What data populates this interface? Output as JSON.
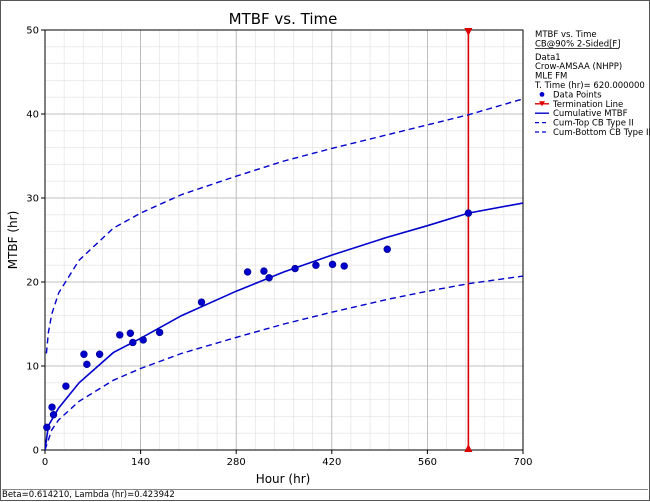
{
  "chart_data": {
    "type": "scatter",
    "title": "MTBF vs. Time",
    "xlabel": "Hour (hr)",
    "ylabel": "MTBF (hr)",
    "xlim": [
      0,
      700
    ],
    "ylim": [
      0,
      50
    ],
    "x_ticks": [
      0,
      140,
      280,
      420,
      560,
      700
    ],
    "x_tick_labels": [
      "0",
      "140",
      "280",
      "420",
      "560",
      "700"
    ],
    "y_ticks": [
      0,
      10,
      20,
      30,
      40,
      50
    ],
    "y_tick_labels": [
      "0",
      "10",
      "20",
      "30",
      "40",
      "50"
    ],
    "grid": true,
    "legend_position": "right",
    "legend": {
      "header": [
        "MTBF vs. Time",
        "CB@90% 2-Sided[F]",
        "Data1",
        "Crow-AMSAA (NHPP)",
        "MLE FM",
        "T. Time (hr)= 620.000000"
      ],
      "entries": [
        {
          "label": "Data Points",
          "symbol": "dot"
        },
        {
          "label": "Termination Line",
          "symbol": "red-line"
        },
        {
          "label": "Cumulative MTBF",
          "symbol": "solid"
        },
        {
          "label": "Cum-Top CB Type II",
          "symbol": "dashed"
        },
        {
          "label": "Cum-Bottom CB Type II",
          "symbol": "dashed"
        }
      ]
    },
    "series": [
      {
        "name": "Data Points",
        "type": "scatter",
        "x": [
          2.7,
          10.3,
          12.5,
          30.6,
          57.0,
          61.3,
          80.0,
          109.5,
          125.0,
          128.6,
          143.8,
          167.9,
          229.2,
          296.7,
          320.6,
          328.2,
          366.2,
          396.7,
          421.1,
          438.2,
          501.2,
          620.0
        ],
        "y": [
          2.7,
          5.1,
          4.2,
          7.6,
          11.4,
          10.2,
          11.4,
          13.7,
          13.9,
          12.8,
          13.1,
          14.0,
          17.6,
          21.2,
          21.3,
          20.5,
          21.6,
          22.0,
          22.1,
          21.9,
          23.9,
          28.2
        ]
      },
      {
        "name": "Termination Line",
        "type": "vline",
        "x": 620,
        "y": [
          0,
          50
        ]
      },
      {
        "name": "Cumulative MTBF",
        "type": "line",
        "x": [
          0,
          5,
          20,
          50,
          100,
          140,
          200,
          280,
          350,
          420,
          500,
          560,
          620,
          700
        ],
        "y": [
          0,
          2.9,
          5.0,
          8.0,
          11.6,
          13.3,
          16.0,
          18.9,
          21.2,
          23.2,
          25.3,
          26.7,
          28.2,
          29.4
        ]
      },
      {
        "name": "Cum-Top CB Type II",
        "type": "line",
        "x": [
          2,
          5,
          10,
          20,
          50,
          100,
          140,
          200,
          280,
          350,
          420,
          500,
          560,
          620,
          700
        ],
        "y": [
          11.5,
          14.0,
          16.2,
          18.7,
          22.6,
          26.4,
          28.2,
          30.4,
          32.6,
          34.4,
          35.9,
          37.5,
          38.7,
          39.9,
          41.8
        ]
      },
      {
        "name": "Cum-Bottom CB Type II",
        "type": "line",
        "x": [
          0,
          10,
          20,
          50,
          100,
          140,
          200,
          280,
          350,
          420,
          500,
          560,
          620,
          700
        ],
        "y": [
          0,
          2.4,
          3.6,
          5.8,
          8.3,
          9.7,
          11.5,
          13.4,
          15.0,
          16.4,
          17.9,
          18.9,
          19.8,
          20.7
        ]
      }
    ],
    "colors": {
      "series": "#0000cc",
      "termination": "#dd0000",
      "grid_major": "#b0b0b0",
      "grid_minor": "#e0e0e0"
    }
  },
  "footer": {
    "text": "Beta=0.614210, Lambda (hr)=0.423942"
  }
}
